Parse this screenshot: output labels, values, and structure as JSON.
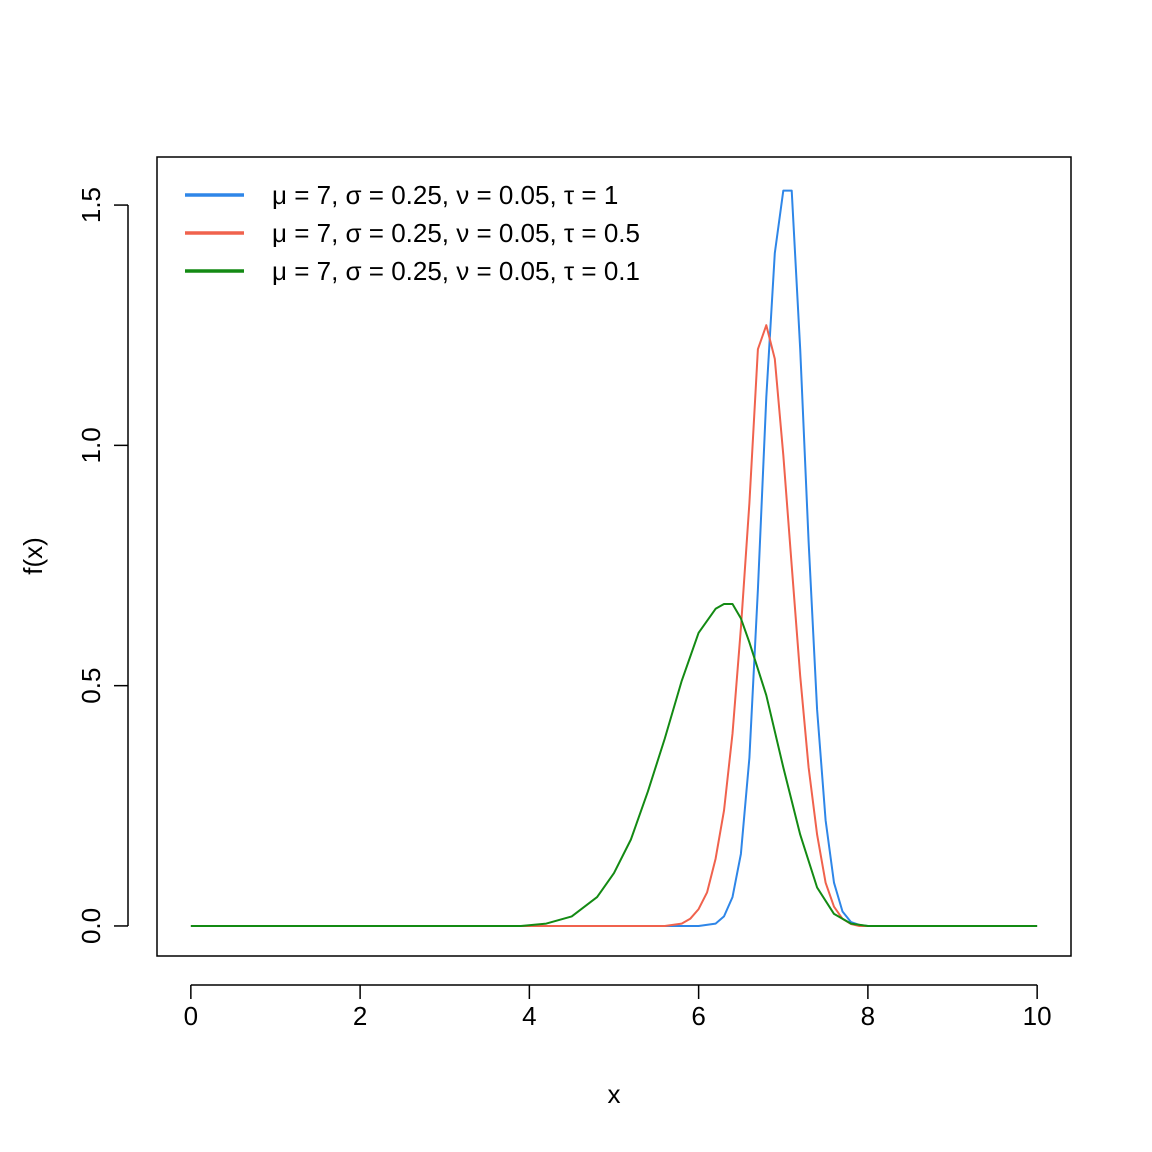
{
  "chart_data": {
    "type": "line",
    "xlabel": "x",
    "ylabel": "f(x)",
    "xlim": [
      -0.4,
      10.4
    ],
    "ylim": [
      -0.0625,
      1.6
    ],
    "x_ticks": [
      "0",
      "2",
      "4",
      "6",
      "8",
      "10"
    ],
    "y_ticks": [
      "0.0",
      "0.5",
      "1.0",
      "1.5"
    ],
    "grid": false,
    "legend_position": "top-left",
    "series": [
      {
        "name": "μ = 7, σ = 0.25, ν = 0.05, τ = 1",
        "color": "#2E86E8",
        "x": [
          0,
          5.8,
          6.0,
          6.2,
          6.3,
          6.4,
          6.5,
          6.6,
          6.7,
          6.8,
          6.9,
          7.0,
          7.1,
          7.2,
          7.3,
          7.4,
          7.5,
          7.6,
          7.7,
          7.8,
          7.9,
          8.0,
          10.0
        ],
        "y": [
          0,
          0,
          0,
          0.005,
          0.02,
          0.06,
          0.15,
          0.35,
          0.7,
          1.1,
          1.4,
          1.53,
          1.53,
          1.2,
          0.8,
          0.45,
          0.22,
          0.09,
          0.03,
          0.008,
          0.002,
          0,
          0
        ]
      },
      {
        "name": "μ = 7, σ = 0.25, ν = 0.05, τ = 0.5",
        "color": "#F0624D",
        "x": [
          0,
          5.6,
          5.8,
          5.9,
          6.0,
          6.1,
          6.2,
          6.3,
          6.4,
          6.5,
          6.6,
          6.7,
          6.8,
          6.9,
          7.0,
          7.1,
          7.2,
          7.3,
          7.4,
          7.5,
          7.6,
          7.7,
          7.8,
          7.9,
          10.0
        ],
        "y": [
          0,
          0,
          0.005,
          0.015,
          0.035,
          0.07,
          0.14,
          0.24,
          0.4,
          0.62,
          0.88,
          1.2,
          1.25,
          1.18,
          0.98,
          0.75,
          0.52,
          0.33,
          0.19,
          0.09,
          0.04,
          0.015,
          0.004,
          0,
          0
        ]
      },
      {
        "name": "μ = 7, σ = 0.25, ν = 0.05, τ = 0.1",
        "color": "#138A13",
        "x": [
          0,
          3.9,
          4.2,
          4.5,
          4.8,
          5.0,
          5.2,
          5.4,
          5.6,
          5.8,
          6.0,
          6.2,
          6.3,
          6.4,
          6.5,
          6.6,
          6.8,
          7.0,
          7.2,
          7.4,
          7.6,
          7.8,
          8.0,
          10.0
        ],
        "y": [
          0,
          0,
          0.005,
          0.02,
          0.06,
          0.11,
          0.18,
          0.28,
          0.39,
          0.51,
          0.61,
          0.66,
          0.67,
          0.67,
          0.64,
          0.59,
          0.48,
          0.33,
          0.19,
          0.08,
          0.025,
          0.005,
          0,
          0
        ]
      }
    ]
  }
}
